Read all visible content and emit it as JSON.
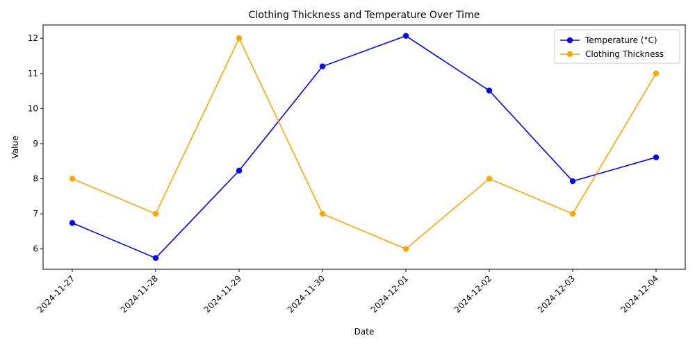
{
  "chart_data": {
    "type": "line",
    "title": "Clothing Thickness and Temperature Over Time",
    "xlabel": "Date",
    "ylabel": "Value",
    "categories": [
      "2024-11-27",
      "2024-11-28",
      "2024-11-29",
      "2024-11-30",
      "2024-12-01",
      "2024-12-02",
      "2024-12-03",
      "2024-12-04"
    ],
    "yticks": [
      6,
      7,
      8,
      9,
      10,
      11,
      12
    ],
    "ylim": [
      5.42,
      12.38
    ],
    "grid": false,
    "legend_position": "top-right",
    "series": [
      {
        "name": "Temperature (°C)",
        "color": "#0000ff",
        "marker": "circle",
        "values": [
          6.74,
          5.74,
          8.23,
          11.2,
          12.07,
          10.51,
          7.93,
          8.61
        ]
      },
      {
        "name": "Clothing Thickness",
        "color": "#ffa500",
        "marker": "circle",
        "values": [
          8,
          7,
          12,
          7,
          6,
          8,
          7,
          11
        ]
      }
    ]
  }
}
